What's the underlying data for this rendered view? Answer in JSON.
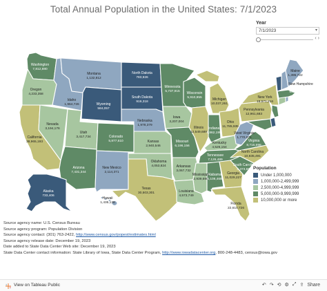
{
  "title": "Total Annual Population in the United States: 7/1/2023",
  "year_filter": {
    "label": "Year",
    "value": "7/1/2023"
  },
  "colors": {
    "bin_1": "#3a5a7a",
    "bin_2": "#8fa7c0",
    "bin_3": "#a7c6a0",
    "bin_4": "#5f8a66",
    "bin_5": "#c2c078",
    "border": "#ffffff"
  },
  "legend": {
    "title": "Population",
    "items": [
      {
        "label": "Under 1,000,000",
        "bin": "bin_1"
      },
      {
        "label": "1,000,000-2,499,999",
        "bin": "bin_2"
      },
      {
        "label": "2,500,000-4,999,999",
        "bin": "bin_3"
      },
      {
        "label": "5,000,000-9,999,999",
        "bin": "bin_4"
      },
      {
        "label": "10,000,000 or more",
        "bin": "bin_5"
      }
    ]
  },
  "states": {
    "WA": {
      "name": "Washington",
      "value": "7,812,880",
      "bin": "bin_4"
    },
    "OR": {
      "name": "Oregon",
      "value": "4,233,358",
      "bin": "bin_3"
    },
    "CA": {
      "name": "California",
      "value": "38,965,193",
      "bin": "bin_5"
    },
    "ID": {
      "name": "Idaho",
      "value": "1,964,726",
      "bin": "bin_2"
    },
    "NV": {
      "name": "Nevada",
      "value": "3,194,176",
      "bin": "bin_3"
    },
    "UT": {
      "name": "Utah",
      "value": "3,417,734",
      "bin": "bin_3"
    },
    "AZ": {
      "name": "Arizona",
      "value": "7,431,344",
      "bin": "bin_4"
    },
    "MT": {
      "name": "Montana",
      "value": "1,132,812",
      "bin": "bin_2"
    },
    "WY": {
      "name": "Wyoming",
      "value": "584,057",
      "bin": "bin_1"
    },
    "CO": {
      "name": "Colorado",
      "value": "5,877,610",
      "bin": "bin_4"
    },
    "NM": {
      "name": "New Mexico",
      "value": "2,114,371",
      "bin": "bin_2"
    },
    "ND": {
      "name": "North Dakota",
      "value": "783,926",
      "bin": "bin_1"
    },
    "SD": {
      "name": "South Dakota",
      "value": "919,318",
      "bin": "bin_1"
    },
    "NE": {
      "name": "Nebraska",
      "value": "1,978,379",
      "bin": "bin_2"
    },
    "KS": {
      "name": "Kansas",
      "value": "2,940,546",
      "bin": "bin_3"
    },
    "OK": {
      "name": "Oklahoma",
      "value": "4,053,824",
      "bin": "bin_3"
    },
    "TX": {
      "name": "Texas",
      "value": "30,503,301",
      "bin": "bin_5"
    },
    "MN": {
      "name": "Minnesota",
      "value": "5,737,915",
      "bin": "bin_4"
    },
    "IA": {
      "name": "Iowa",
      "value": "3,207,004",
      "bin": "bin_3"
    },
    "MO": {
      "name": "Missouri",
      "value": "6,196,156",
      "bin": "bin_4"
    },
    "AR": {
      "name": "Arkansas",
      "value": "3,067,732",
      "bin": "bin_3"
    },
    "LA": {
      "name": "Louisiana",
      "value": "4,573,749",
      "bin": "bin_3"
    },
    "WI": {
      "name": "Wisconsin",
      "value": "5,910,955",
      "bin": "bin_4"
    },
    "IL": {
      "name": "Illinois",
      "value": "12,549,689",
      "bin": "bin_5"
    },
    "MI": {
      "name": "Michigan",
      "value": "10,037,261",
      "bin": "bin_5"
    },
    "IN": {
      "name": "Indiana",
      "value": "6,862,199",
      "bin": "bin_4"
    },
    "OH": {
      "name": "Ohio",
      "value": "11,785,935",
      "bin": "bin_5"
    },
    "KY": {
      "name": "Kentucky",
      "value": "4,526,154",
      "bin": "bin_3"
    },
    "TN": {
      "name": "Tennessee",
      "value": "7,126,489",
      "bin": "bin_4"
    },
    "MS": {
      "name": "Mississippi",
      "value": "2,939,690",
      "bin": "bin_3"
    },
    "AL": {
      "name": "Alabama",
      "value": "5,108,468",
      "bin": "bin_4"
    },
    "GA": {
      "name": "Georgia",
      "value": "11,029,227",
      "bin": "bin_5"
    },
    "FL": {
      "name": "Florida",
      "value": "22,610,726",
      "bin": "bin_5"
    },
    "SC": {
      "name": "South Carolina",
      "value": "5,373,555",
      "bin": "bin_4"
    },
    "NC": {
      "name": "North Carolina",
      "value": "10,835,491",
      "bin": "bin_5"
    },
    "VA": {
      "name": "Virginia",
      "value": "8,715,698",
      "bin": "bin_4"
    },
    "WV": {
      "name": "West Virginia",
      "value": "1,770,071",
      "bin": "bin_2"
    },
    "PA": {
      "name": "Pennsylvania",
      "value": "12,961,683",
      "bin": "bin_5"
    },
    "NY": {
      "name": "New York",
      "value": "19,571,216",
      "bin": "bin_5"
    },
    "ME": {
      "name": "Maine",
      "value": "1,395,722",
      "bin": "bin_2"
    },
    "NH": {
      "name": "New Hampshire",
      "value": "",
      "bin": "bin_2"
    },
    "VT": {
      "name": "",
      "value": "",
      "bin": "bin_1"
    },
    "MA": {
      "name": "Massachusetts",
      "value": "",
      "bin": "bin_4"
    },
    "NJ": {
      "name": "",
      "value": "",
      "bin": "bin_4"
    },
    "MD": {
      "name": "",
      "value": "",
      "bin": "bin_4"
    },
    "CT": {
      "name": "",
      "value": "",
      "bin": "bin_3"
    },
    "DE": {
      "name": "",
      "value": "",
      "bin": "bin_1"
    },
    "RI": {
      "name": "",
      "value": "",
      "bin": "bin_2"
    },
    "AK": {
      "name": "Alaska",
      "value": "733,406",
      "bin": "bin_1"
    },
    "HI": {
      "name": "Hawaii",
      "value": "1,435,138",
      "bin": "bin_2"
    }
  },
  "sources": [
    {
      "text": "Source agency name: U.S. Census Bureau"
    },
    {
      "text": "Source agency program: Population Division"
    },
    {
      "text": "Source agency contact: (301) 763-2422, ",
      "link": "http://www.census.gov/popest/estimates.html"
    },
    {
      "text": "Source agency release date: December 19, 2023"
    },
    {
      "text": "Date added to State Data Center Web site: December 19, 2023"
    },
    {
      "text": "State Data Center contact information: State Library of Iowa, State Data Center Program, ",
      "link": "http://www.iowadatacenter.org",
      "tail": ", 800-248-4483, census@iowa.gov"
    }
  ],
  "footer": {
    "view_label": "View on Tableau Public",
    "share_label": "Share"
  }
}
